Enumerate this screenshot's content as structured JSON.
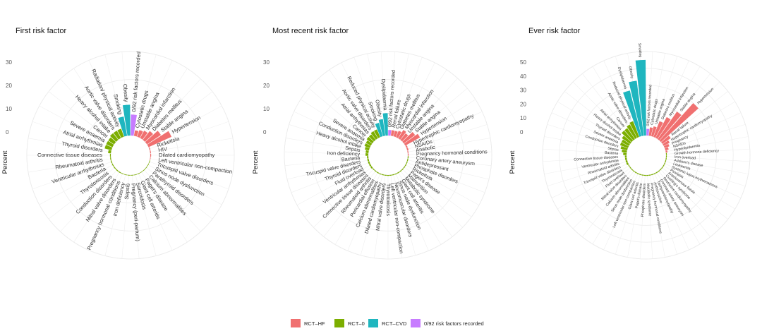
{
  "legend": {
    "items": [
      {
        "label": "RCT–HF",
        "color": "#f07070"
      },
      {
        "label": "RCT–0",
        "color": "#7cae00"
      },
      {
        "label": "RCT–CVD",
        "color": "#1fb6bf"
      },
      {
        "label": "0/92 risk factors recorded",
        "color": "#c77cff"
      }
    ]
  },
  "chart_data": [
    {
      "type": "bar",
      "polar": true,
      "title": "First risk factor",
      "ylabel": "Percent",
      "yticks": [
        0,
        10,
        20,
        30
      ],
      "ylim": [
        0,
        30
      ],
      "grid": true,
      "categories": [
        {
          "label": "0/92 risk factors recorded",
          "group": "RCT–0/92",
          "value": 7.5
        },
        {
          "label": "Cytostatic drugs",
          "group": "RCT–HF",
          "value": 2
        },
        {
          "label": "Unstable angina",
          "group": "RCT–HF",
          "value": 2.5
        },
        {
          "label": "Myocardial infarction",
          "group": "RCT–HF",
          "value": 3
        },
        {
          "label": "Diabetes mellitus",
          "group": "RCT–HF",
          "value": 4
        },
        {
          "label": "Stable angina",
          "group": "RCT–HF",
          "value": 6
        },
        {
          "label": "Hypertension",
          "group": "RCT–HF",
          "value": 9
        },
        {
          "label": "Rickettsia",
          "group": "RCT–HF",
          "value": 0.3
        },
        {
          "label": "HIV",
          "group": "RCT–HF",
          "value": 0.3
        },
        {
          "label": "Dilated cardiomyopathy",
          "group": "RCT–HF",
          "value": 0.3
        },
        {
          "label": "Left ventricular non-compaction",
          "group": "RCT–HF",
          "value": 0.2
        },
        {
          "label": "Tricuspid valve disorders",
          "group": "RCT–0",
          "value": 0.2
        },
        {
          "label": "Sinus node dysfunction",
          "group": "RCT–0",
          "value": 0.2
        },
        {
          "label": "Parathyroid disorders",
          "group": "RCT–0",
          "value": 0.2
        },
        {
          "label": "Calcium abnormalities",
          "group": "RCT–0",
          "value": 0.2
        },
        {
          "label": "Paget's disease",
          "group": "RCT–0",
          "value": 0.2
        },
        {
          "label": "Giant cell arteritis",
          "group": "RCT–0",
          "value": 0.2
        },
        {
          "label": "Sarcoidosis",
          "group": "RCT–0",
          "value": 0.2
        },
        {
          "label": "Pregnancy (peri-partum)",
          "group": "RCT–0",
          "value": 0.2
        },
        {
          "label": "Sepsis",
          "group": "RCT–0",
          "value": 0.2
        },
        {
          "label": "Iron deficiency",
          "group": "RCT–0",
          "value": 0.2
        },
        {
          "label": "Pregnancy hormonal conditions",
          "group": "RCT–0",
          "value": 0.2
        },
        {
          "label": "Mitral valve disorders",
          "group": "RCT–0",
          "value": 0.3
        },
        {
          "label": "Conduction disorders",
          "group": "RCT–0",
          "value": 0.3
        },
        {
          "label": "Thyrotoxicosis",
          "group": "RCT–0",
          "value": 0.3
        },
        {
          "label": "Bacteria",
          "group": "RCT–0",
          "value": 0.3
        },
        {
          "label": "Ventricular arrhythmias",
          "group": "RCT–0",
          "value": 0.3
        },
        {
          "label": "Rheumatoid arthritis",
          "group": "RCT–0",
          "value": 0.3
        },
        {
          "label": "Connective tissue diseases",
          "group": "RCT–0",
          "value": 0.3
        },
        {
          "label": "Thyroid disorders",
          "group": "RCT–0",
          "value": 1
        },
        {
          "label": "Atrial arrhythmias",
          "group": "RCT–0",
          "value": 2.5
        },
        {
          "label": "Severe anaemia",
          "group": "RCT–0",
          "value": 2.5
        },
        {
          "label": "Cancer",
          "group": "RCT–0",
          "value": 2.5
        },
        {
          "label": "Heavy alcohol intake",
          "group": "RCT–0",
          "value": 3
        },
        {
          "label": "Aortic valve disorders",
          "group": "RCT–0",
          "value": 3
        },
        {
          "label": "Radiation/ physical activity",
          "group": "RCT–0",
          "value": 3
        },
        {
          "label": "Smoking",
          "group": "RCT–CVD",
          "value": 7
        },
        {
          "label": "Obesity",
          "group": "RCT–CVD",
          "value": 11
        }
      ]
    },
    {
      "type": "bar",
      "polar": true,
      "title": "Most recent risk factor",
      "ylabel": "Percent",
      "yticks": [
        0,
        10,
        20,
        30
      ],
      "ylim": [
        0,
        30
      ],
      "grid": true,
      "categories": [
        {
          "label": "0/92 risk factors recorded",
          "group": "RCT–0/92",
          "value": 2
        },
        {
          "label": "Renal failure",
          "group": "RCT–HF",
          "value": 2
        },
        {
          "label": "Cytostatic drugs",
          "group": "RCT–HF",
          "value": 2
        },
        {
          "label": "Diabetes mellitus",
          "group": "RCT–HF",
          "value": 2.5
        },
        {
          "label": "Myocardial infarction",
          "group": "RCT–HF",
          "value": 3.5
        },
        {
          "label": "Unstable angina",
          "group": "RCT–HF",
          "value": 3
        },
        {
          "label": "Stable angina",
          "group": "RCT–HF",
          "value": 5
        },
        {
          "label": "Hypertension",
          "group": "RCT–HF",
          "value": 6
        },
        {
          "label": "Hypertrophic cardiomyopathy",
          "group": "RCT–HF",
          "value": 0.5
        },
        {
          "label": "NSAIDs",
          "group": "RCT–HF",
          "value": 0.5
        },
        {
          "label": "Anabolic",
          "group": "RCT–HF",
          "value": 0.3
        },
        {
          "label": "Pregnancy hormonal conditions",
          "group": "RCT–HF",
          "value": 0.3
        },
        {
          "label": "Coronary artery aneurysm",
          "group": "RCT–0",
          "value": 0.3
        },
        {
          "label": "Antidepressant",
          "group": "RCT–0",
          "value": 0.3
        },
        {
          "label": "Phosphate disorders",
          "group": "RCT–0",
          "value": 0.3
        },
        {
          "label": "Rickettsia",
          "group": "RCT–0",
          "value": 0.3
        },
        {
          "label": "Paget's disease",
          "group": "RCT–0",
          "value": 0.3
        },
        {
          "label": "Malnutrition",
          "group": "RCT–0",
          "value": 0.3
        },
        {
          "label": "Metabolic syndrome",
          "group": "RCT–0",
          "value": 0.3
        },
        {
          "label": "Giant cell arteritis",
          "group": "RCT–0",
          "value": 0.3
        },
        {
          "label": "Sinus node dysfunction",
          "group": "RCT–0",
          "value": 0.3
        },
        {
          "label": "Neuromuscular disorders",
          "group": "RCT–0",
          "value": 0.3
        },
        {
          "label": "Left ventricular non-compaction",
          "group": "RCT–0",
          "value": 0.3
        },
        {
          "label": "Thyrotoxicosis",
          "group": "RCT–0",
          "value": 0.3
        },
        {
          "label": "Mitral valve disorders",
          "group": "RCT–0",
          "value": 0.3
        },
        {
          "label": "Dilated cardiomyopathy",
          "group": "RCT–0",
          "value": 0.3
        },
        {
          "label": "Calcium abnormalities",
          "group": "RCT–0",
          "value": 0.3
        },
        {
          "label": "Pericardial effusion",
          "group": "RCT–0",
          "value": 0.3
        },
        {
          "label": "Rheumatoid arthritis",
          "group": "RCT–0",
          "value": 0.3
        },
        {
          "label": "Connective tissue diseases",
          "group": "RCT–0",
          "value": 0.3
        },
        {
          "label": "Ventricular arrhythmias",
          "group": "RCT–0",
          "value": 0.5
        },
        {
          "label": "Fluid overload",
          "group": "RCT–0",
          "value": 0.5
        },
        {
          "label": "Thyroid disorders",
          "group": "RCT–0",
          "value": 0.5
        },
        {
          "label": "Tricuspid valve disorders",
          "group": "RCT–0",
          "value": 0.5
        },
        {
          "label": "Bacteria",
          "group": "RCT–0",
          "value": 0.5
        },
        {
          "label": "Iron deficiency",
          "group": "RCT–0",
          "value": 1
        },
        {
          "label": "Sepsis",
          "group": "RCT–0",
          "value": 1
        },
        {
          "label": "Heavy alcohol intake",
          "group": "RCT–0",
          "value": 1.5
        },
        {
          "label": "Conduction disorders",
          "group": "RCT–0",
          "value": 2
        },
        {
          "label": "Severe anaemia",
          "group": "RCT–0",
          "value": 2
        },
        {
          "label": "Cancer",
          "group": "RCT–0",
          "value": 2.5
        },
        {
          "label": "Atrial arrhythmias",
          "group": "RCT–0",
          "value": 2.5
        },
        {
          "label": "Aortic valve disorders",
          "group": "RCT–0",
          "value": 3
        },
        {
          "label": "Reduced physical activity",
          "group": "RCT–0",
          "value": 3
        },
        {
          "label": "Smoking",
          "group": "RCT–CVD",
          "value": 5
        },
        {
          "label": "Obesity",
          "group": "RCT–CVD",
          "value": 6
        },
        {
          "label": "Dyslipidaemia",
          "group": "RCT–CVD",
          "value": 8
        }
      ]
    },
    {
      "type": "bar",
      "polar": true,
      "title": "Ever risk factor",
      "ylabel": "Percent",
      "yticks": [
        0,
        10,
        20,
        30,
        40,
        50
      ],
      "ylim": [
        0,
        50
      ],
      "grid": true,
      "categories": [
        {
          "label": "0/92 risk factors recorded",
          "group": "RCT–0/92",
          "value": 4
        },
        {
          "label": "Cytostatic drugs",
          "group": "RCT–HF",
          "value": 5
        },
        {
          "label": "Unstable angina",
          "group": "RCT–HF",
          "value": 6
        },
        {
          "label": "Diabetes mellitus",
          "group": "RCT–HF",
          "value": 10
        },
        {
          "label": "Myocardial infarction",
          "group": "RCT–HF",
          "value": 14
        },
        {
          "label": "Stable angina",
          "group": "RCT–HF",
          "value": 20
        },
        {
          "label": "Hypertension",
          "group": "RCT–HF",
          "value": 30
        },
        {
          "label": "Renal failure",
          "group": "RCT–HF",
          "value": 6
        },
        {
          "label": "Hypertrophic cardiomyopathy",
          "group": "RCT–HF",
          "value": 4
        },
        {
          "label": "Pregnancy",
          "group": "RCT–HF",
          "value": 3
        },
        {
          "label": "NSAIDs",
          "group": "RCT–HF",
          "value": 2
        },
        {
          "label": "Hyperlipidaemia",
          "group": "RCT–HF",
          "value": 1
        },
        {
          "label": "Growth hormone deficiency",
          "group": "RCT–0",
          "value": 0.5
        },
        {
          "label": "Iron overload",
          "group": "RCT–0",
          "value": 0.5
        },
        {
          "label": "Addison's disease",
          "group": "RCT–0",
          "value": 0.5
        },
        {
          "label": "Leukaemia",
          "group": "RCT–0",
          "value": 0.5
        },
        {
          "label": "Systemic lupus erythematosus",
          "group": "RCT–0",
          "value": 0.5
        },
        {
          "label": "Psoriasis",
          "group": "RCT–0",
          "value": 0.5
        },
        {
          "label": "Arteriovenous fistula",
          "group": "RCT–0",
          "value": 0.5
        },
        {
          "label": "Cushing's syndrome",
          "group": "RCT–0",
          "value": 0.5
        },
        {
          "label": "Restrictive cardiomyopathy",
          "group": "RCT–0",
          "value": 0.5
        },
        {
          "label": "Coronary artery aneurysm",
          "group": "RCT–0",
          "value": 0.5
        },
        {
          "label": "Tachycardiomyopathy",
          "group": "RCT–0",
          "value": 0.5
        },
        {
          "label": "Anthracycline",
          "group": "RCT–0",
          "value": 0.5
        },
        {
          "label": "Pregnancy hormonal conditions",
          "group": "RCT–0",
          "value": 0.5
        },
        {
          "label": "Metabolic syndrome",
          "group": "RCT–0",
          "value": 0.5
        },
        {
          "label": "Phosphate disorders",
          "group": "RCT–0",
          "value": 0.5
        },
        {
          "label": "Paget's disease",
          "group": "RCT–0",
          "value": 0.5
        },
        {
          "label": "Giant cell arteritis",
          "group": "RCT–0",
          "value": 0.5
        },
        {
          "label": "Left ventricular non-compaction",
          "group": "RCT–0",
          "value": 0.5
        },
        {
          "label": "Sinus node dysfunction",
          "group": "RCT–0",
          "value": 0.5
        },
        {
          "label": "Calcium abnormalities",
          "group": "RCT–0",
          "value": 0.5
        },
        {
          "label": "Mitral valve disorders",
          "group": "RCT–0",
          "value": 0.5
        },
        {
          "label": "Fluid overload",
          "group": "RCT–0",
          "value": 0.5
        },
        {
          "label": "Thyrotoxicosis",
          "group": "RCT–0",
          "value": 0.5
        },
        {
          "label": "Tricuspid valve disorders",
          "group": "RCT–0",
          "value": 1
        },
        {
          "label": "Rheumatoid arthritis",
          "group": "RCT–0",
          "value": 1
        },
        {
          "label": "Ventricular arrhythmias",
          "group": "RCT–0",
          "value": 1
        },
        {
          "label": "Connective tissue diseases",
          "group": "RCT–0",
          "value": 1
        },
        {
          "label": "Bacteria",
          "group": "RCT–0",
          "value": 2
        },
        {
          "label": "Sepsis",
          "group": "RCT–0",
          "value": 3
        },
        {
          "label": "Conduction disorders",
          "group": "RCT–0",
          "value": 4
        },
        {
          "label": "Severe anaemia",
          "group": "RCT–0",
          "value": 5
        },
        {
          "label": "Thyroid disorders",
          "group": "RCT–0",
          "value": 5
        },
        {
          "label": "Heavy alcohol intake",
          "group": "RCT–0",
          "value": 6
        },
        {
          "label": "Atrial arrhythmias",
          "group": "RCT–0",
          "value": 8
        },
        {
          "label": "Cancer",
          "group": "RCT–0",
          "value": 8
        },
        {
          "label": "Aortic valve disorders",
          "group": "RCT–0",
          "value": 9
        },
        {
          "label": "Reduced physical activity",
          "group": "RCT–0",
          "value": 10
        },
        {
          "label": "Dyslipidaemia",
          "group": "RCT–CVD",
          "value": 28
        },
        {
          "label": "Obesity",
          "group": "RCT–CVD",
          "value": 33
        },
        {
          "label": "Smoking",
          "group": "RCT–CVD",
          "value": 45
        }
      ]
    }
  ]
}
